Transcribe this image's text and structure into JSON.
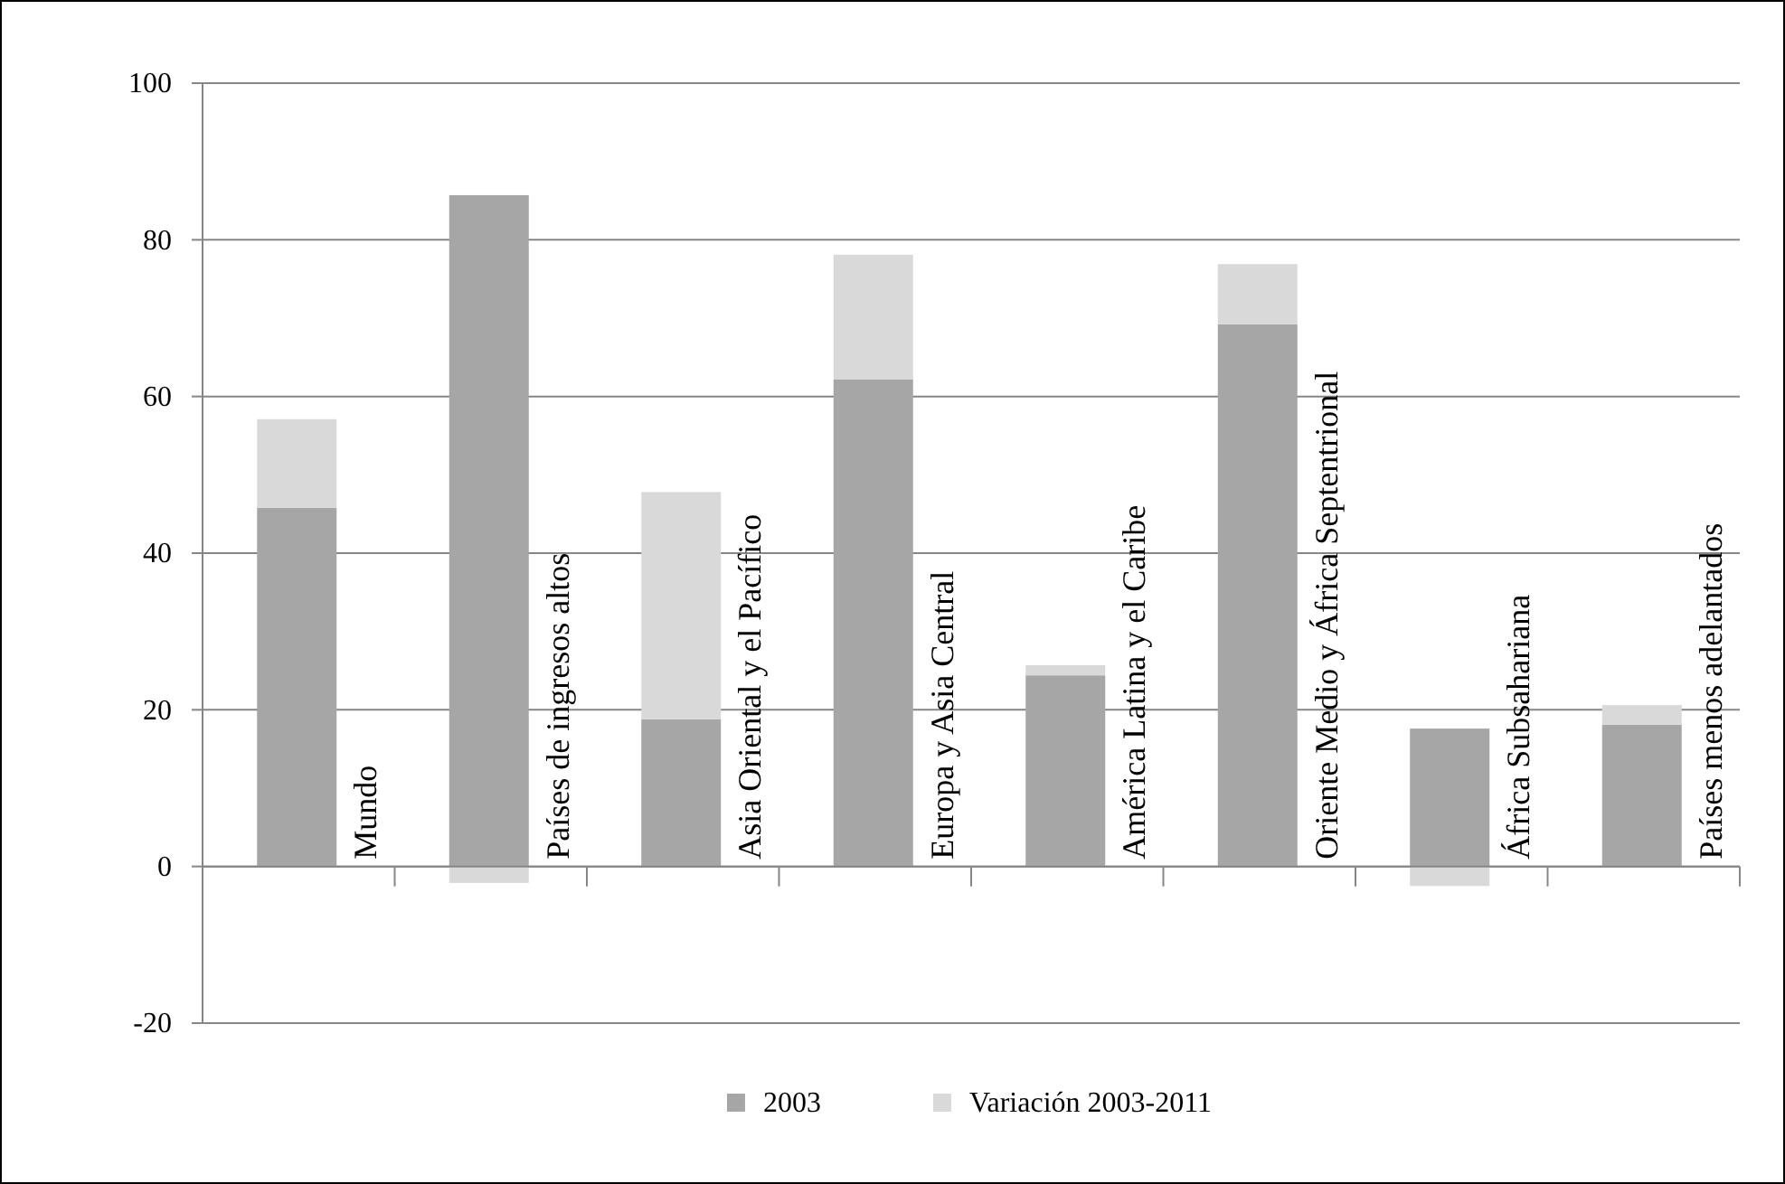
{
  "chart_data": {
    "type": "bar",
    "stacked": true,
    "categories": [
      "Mundo",
      "Países de ingresos altos",
      "Asia Oriental y el Pacífico",
      "Europa y Asia Central",
      "América Latina y el Caribe",
      "Oriente Medio y África Septentrional",
      "África Subsahariana",
      "Países menos adelantados"
    ],
    "series": [
      {
        "name": "2003",
        "color": "#a6a6a6",
        "values": [
          45.8,
          85.7,
          18.8,
          62.2,
          24.4,
          69.2,
          17.6,
          18.1
        ]
      },
      {
        "name": "Variación 2003-2011",
        "color": "#d9d9d9",
        "values": [
          11.3,
          -2.1,
          29.0,
          15.9,
          1.3,
          7.7,
          -2.5,
          2.5
        ]
      }
    ],
    "ylim": [
      -20,
      100
    ],
    "yticks": [
      -20,
      0,
      20,
      40,
      60,
      80,
      100
    ],
    "grid": "y",
    "legend": "bottom"
  }
}
